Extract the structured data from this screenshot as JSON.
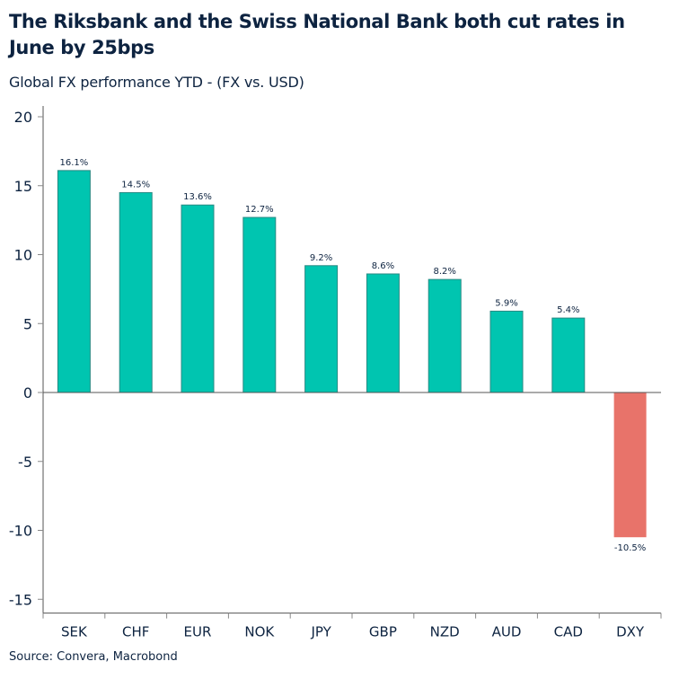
{
  "title": "The Riksbank and the Swiss National Bank both cut rates in June by 25bps",
  "subtitle": "Global FX performance YTD - (FX vs. USD)",
  "source": "Source: Convera, Macrobond",
  "colors": {
    "positive": "#00C5B0",
    "positive_outline": "#2A8A84",
    "negative": "#E8736A",
    "text": "#0D2340"
  },
  "chart_data": {
    "type": "bar",
    "categories": [
      "SEK",
      "CHF",
      "EUR",
      "NOK",
      "JPY",
      "GBP",
      "NZD",
      "AUD",
      "CAD",
      "DXY"
    ],
    "values": [
      16.1,
      14.5,
      13.6,
      12.7,
      9.2,
      8.6,
      8.2,
      5.9,
      5.4,
      -10.5
    ],
    "data_labels": [
      "16.1%",
      "14.5%",
      "13.6%",
      "12.7%",
      "9.2%",
      "8.6%",
      "8.2%",
      "5.9%",
      "5.4%",
      "-10.5%"
    ],
    "ylim": [
      -16,
      20
    ],
    "yticks": [
      20,
      15,
      10,
      5,
      0,
      -5,
      -10,
      -15
    ],
    "grid": false,
    "legend": "none"
  }
}
